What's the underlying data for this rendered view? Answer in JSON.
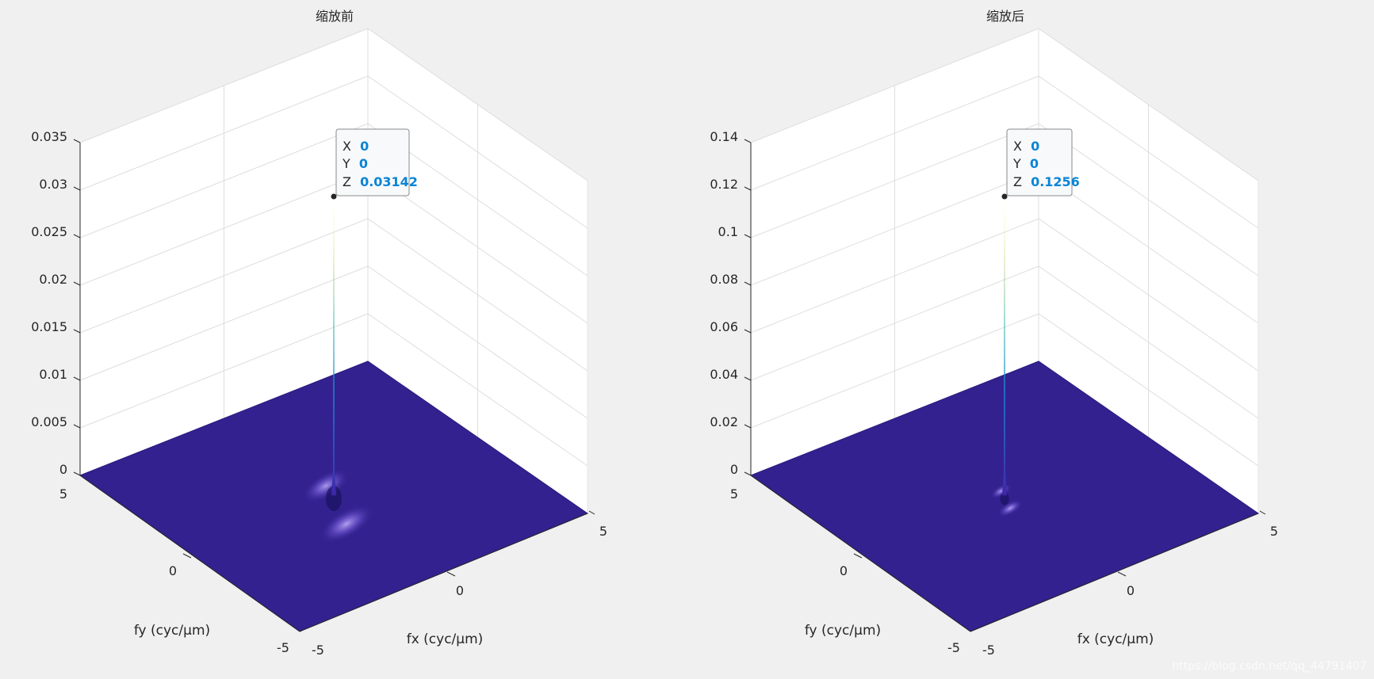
{
  "figure": {
    "watermark": "https://blog.csdn.net/qq_44791407"
  },
  "chart_data": [
    {
      "type": "surface3d",
      "title": "缩放前",
      "xlabel": "fx (cyc/μm)",
      "ylabel": "fy (cyc/μm)",
      "zlabel": "",
      "xlim": [
        -5,
        5
      ],
      "ylim": [
        -5,
        5
      ],
      "zlim": [
        0,
        0.035
      ],
      "x_ticks": [
        "-5",
        "0",
        "5"
      ],
      "y_ticks": [
        "-5",
        "0",
        "5"
      ],
      "z_ticks": [
        "0",
        "0.005",
        "0.01",
        "0.015",
        "0.02",
        "0.025",
        "0.03",
        "0.035"
      ],
      "z_tick_values": [
        0,
        0.005,
        0.01,
        0.015,
        0.02,
        0.025,
        0.03,
        0.035
      ],
      "grid": true,
      "colormap": "parula",
      "peak": {
        "x": 0,
        "y": 0,
        "z": 0.03142
      },
      "datatip": {
        "x_label": "X",
        "x_value": "0",
        "y_label": "Y",
        "y_value": "0",
        "z_label": "Z",
        "z_value": "0.03142"
      },
      "spread": 1.0
    },
    {
      "type": "surface3d",
      "title": "缩放后",
      "xlabel": "fx (cyc/μm)",
      "ylabel": "fy (cyc/μm)",
      "zlabel": "",
      "xlim": [
        -5,
        5
      ],
      "ylim": [
        -5,
        5
      ],
      "zlim": [
        0,
        0.14
      ],
      "x_ticks": [
        "-5",
        "0",
        "5"
      ],
      "y_ticks": [
        "-5",
        "0",
        "5"
      ],
      "z_ticks": [
        "0",
        "0.02",
        "0.04",
        "0.06",
        "0.08",
        "0.1",
        "0.12",
        "0.14"
      ],
      "z_tick_values": [
        0,
        0.02,
        0.04,
        0.06,
        0.08,
        0.1,
        0.12,
        0.14
      ],
      "grid": true,
      "colormap": "parula",
      "peak": {
        "x": 0,
        "y": 0,
        "z": 0.1256
      },
      "datatip": {
        "x_label": "X",
        "x_value": "0",
        "y_label": "Y",
        "y_value": "0",
        "z_label": "Z",
        "z_value": "0.1256"
      },
      "spread": 0.45
    }
  ]
}
